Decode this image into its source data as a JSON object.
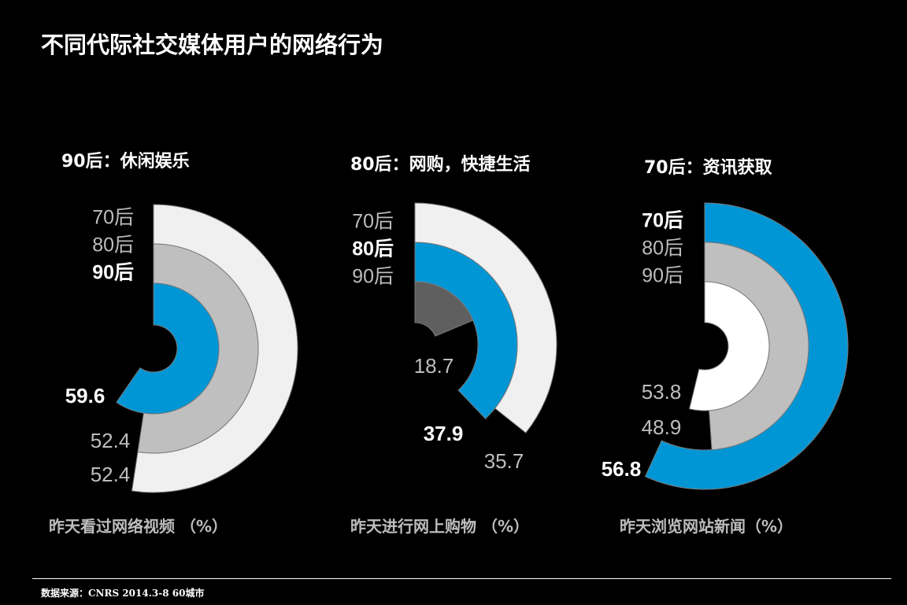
{
  "title": "不同代际社交媒体用户的网络行为",
  "source": "数据来源：CNRS 2014.3-8  60城市",
  "chart_data": [
    {
      "type": "radial-bar",
      "subtitle": "90后：休闲娱乐",
      "xlabel": "昨天看过网络视频 （%）",
      "full_scale": 100,
      "highlight": "90后",
      "series": [
        {
          "name": "70后",
          "value": 52.4,
          "color": "#f0f0f0"
        },
        {
          "name": "80后",
          "value": 52.4,
          "color": "#bfbfbf"
        },
        {
          "name": "90后",
          "value": 59.6,
          "color": "#0096d6"
        }
      ]
    },
    {
      "type": "radial-bar",
      "subtitle": "80后：网购，快捷生活",
      "xlabel": "昨天进行网上购物 （%）",
      "full_scale": 100,
      "highlight": "80后",
      "series": [
        {
          "name": "70后",
          "value": 35.7,
          "color": "#f0f0f0"
        },
        {
          "name": "80后",
          "value": 37.9,
          "color": "#0096d6"
        },
        {
          "name": "90后",
          "value": 18.7,
          "color": "#5f5f5f"
        }
      ]
    },
    {
      "type": "radial-bar",
      "subtitle": "70后：资讯获取",
      "xlabel": "昨天浏览网站新闻（%）",
      "full_scale": 100,
      "highlight": "70后",
      "series": [
        {
          "name": "70后",
          "value": 56.8,
          "color": "#0096d6"
        },
        {
          "name": "80后",
          "value": 48.9,
          "color": "#bfbfbf"
        },
        {
          "name": "90后",
          "value": 53.8,
          "color": "#ffffff"
        }
      ]
    }
  ]
}
